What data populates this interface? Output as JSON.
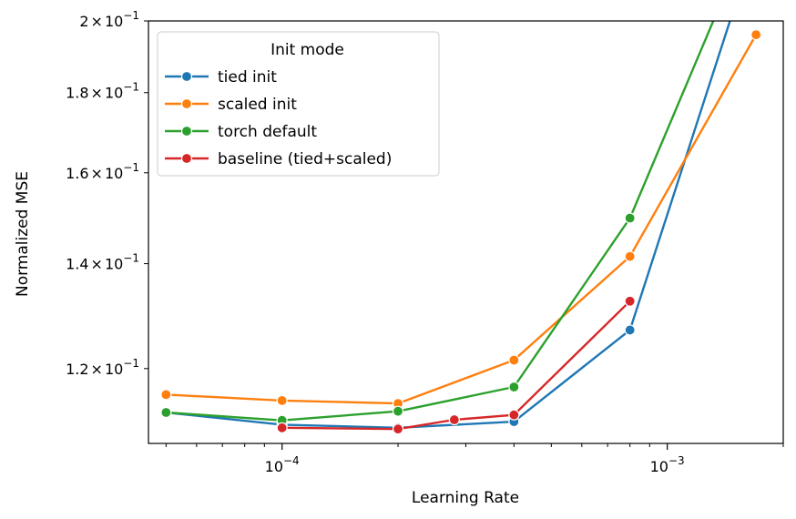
{
  "chart_data": {
    "type": "line",
    "xscale": "log",
    "yscale": "log",
    "xlabel": "Learning Rate",
    "ylabel": "Normalized MSE",
    "xlim": [
      4.5e-05,
      0.002
    ],
    "ylim": [
      0.1075,
      0.2
    ],
    "x_ticks": [
      {
        "value": 0.0001,
        "base": "10",
        "exp": "−4"
      },
      {
        "value": 0.001,
        "base": "10",
        "exp": "−3"
      }
    ],
    "y_ticks": [
      {
        "value": 0.12,
        "mant": "1.2",
        "times": "×",
        "base": "10",
        "exp": "−1"
      },
      {
        "value": 0.14,
        "mant": "1.4",
        "times": "×",
        "base": "10",
        "exp": "−1"
      },
      {
        "value": 0.16,
        "mant": "1.6",
        "times": "×",
        "base": "10",
        "exp": "−1"
      },
      {
        "value": 0.18,
        "mant": "1.8",
        "times": "×",
        "base": "10",
        "exp": "−1"
      },
      {
        "value": 0.2,
        "mant": "2",
        "times": "×",
        "base": "10",
        "exp": "−1"
      }
    ],
    "grid": false,
    "legend": {
      "title": "Init mode",
      "position": "top-left"
    },
    "series": [
      {
        "name": "tied init",
        "color": "#1f77b4",
        "x": [
          5e-05,
          0.0001,
          0.0002,
          0.0004,
          0.0008,
          0.0016
        ],
        "y": [
          0.1125,
          0.1105,
          0.11,
          0.111,
          0.127,
          0.215
        ]
      },
      {
        "name": "scaled init",
        "color": "#ff7f0e",
        "x": [
          5e-05,
          0.0001,
          0.0002,
          0.0004,
          0.0008,
          0.0017
        ],
        "y": [
          0.1155,
          0.1145,
          0.114,
          0.1215,
          0.1415,
          0.196
        ]
      },
      {
        "name": "torch default",
        "color": "#2ca02c",
        "x": [
          5e-05,
          0.0001,
          0.0002,
          0.0004,
          0.0008,
          0.0016
        ],
        "y": [
          0.1125,
          0.1112,
          0.1127,
          0.1168,
          0.1497,
          0.224
        ]
      },
      {
        "name": "baseline (tied+scaled)",
        "color": "#d62728",
        "x": [
          0.0001,
          0.0002,
          0.00028,
          0.0004,
          0.0008
        ],
        "y": [
          0.11,
          0.1098,
          0.1113,
          0.1121,
          0.1325
        ]
      }
    ]
  }
}
